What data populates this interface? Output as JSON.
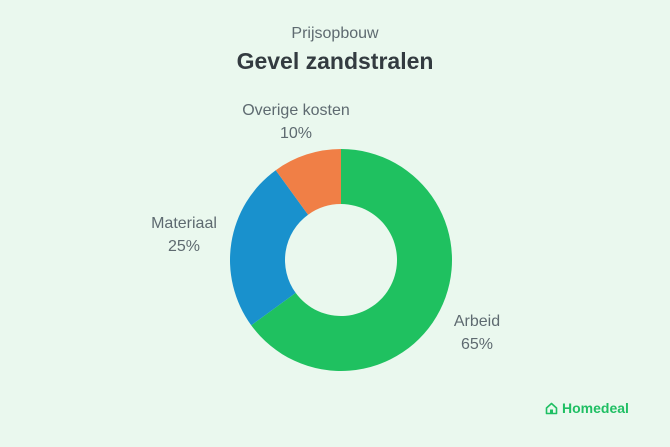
{
  "brand": {
    "name": "Homedeal",
    "icon": "house-icon",
    "color": "#1fbf63"
  },
  "chart_data": {
    "type": "pie",
    "subtitle": "Prijsopbouw",
    "title": "Gevel zandstralen",
    "hole": true,
    "start": "top",
    "direction": "clockwise",
    "slices": [
      {
        "label": "Arbeid",
        "value": 65,
        "value_label": "65%",
        "color": "#1fc160"
      },
      {
        "label": "Materiaal",
        "value": 25,
        "value_label": "25%",
        "color": "#1991cd"
      },
      {
        "label": "Overige kosten",
        "value": 10,
        "value_label": "10%",
        "color": "#f07f46"
      }
    ]
  }
}
